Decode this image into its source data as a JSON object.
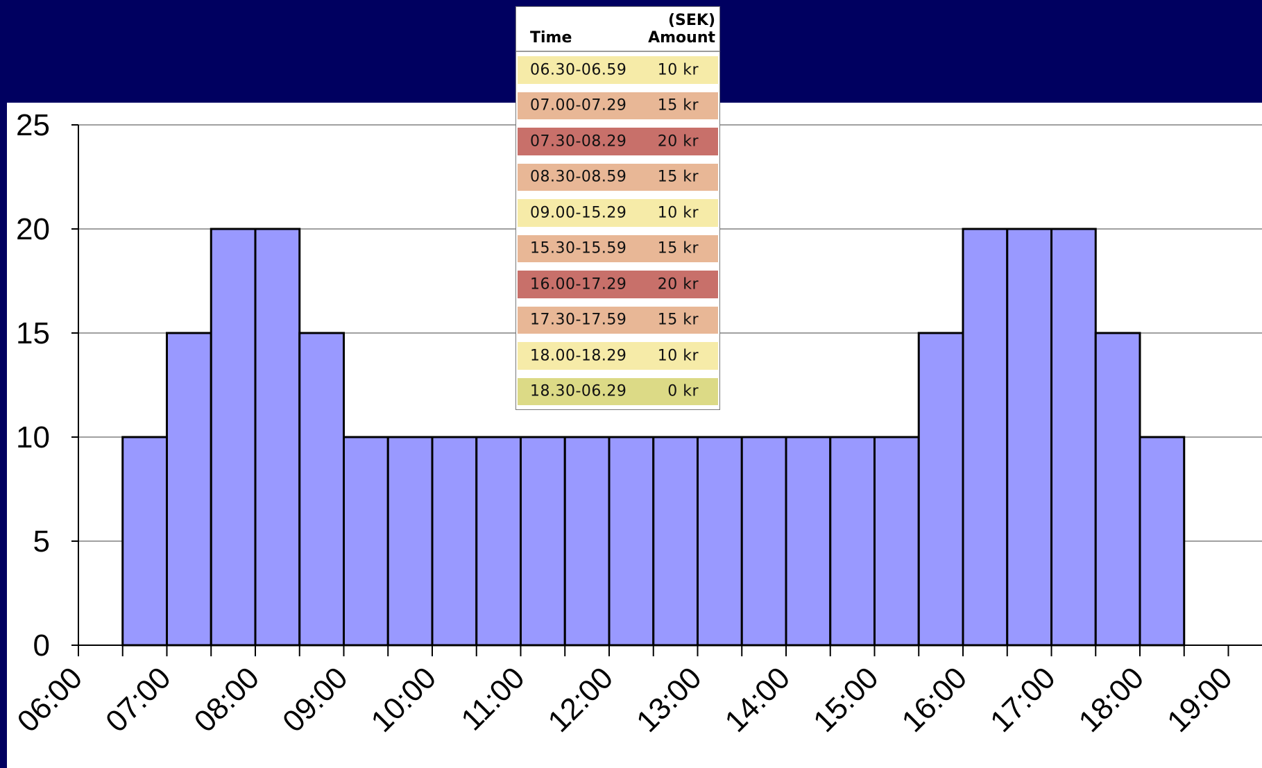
{
  "colors": {
    "slide_background": "#000060",
    "plot_background": "#FFFFFF",
    "bar_fill": "#9999FF",
    "bar_edge": "#000000",
    "gridline": "#808080",
    "rate_10": "#F6EBA8",
    "rate_15": "#E8B796",
    "rate_20": "#C8706A",
    "rate_0": "#DCDA86"
  },
  "chart_data": {
    "type": "bar",
    "title": "",
    "xlabel": "",
    "ylabel": "",
    "ylim": [
      0,
      25
    ],
    "yticks": [
      "0",
      "5",
      "10",
      "15",
      "20",
      "25"
    ],
    "xlim": [
      "06:00",
      "19:00"
    ],
    "xticks": [
      "06:00",
      "07:00",
      "08:00",
      "09:00",
      "10:00",
      "11:00",
      "12:00",
      "13:00",
      "14:00",
      "15:00",
      "16:00",
      "17:00",
      "18:00",
      "19:00"
    ],
    "grid": "horizontal",
    "legend": "none",
    "categories": [
      "06:30",
      "07:00",
      "07:30",
      "08:00",
      "08:30",
      "09:00",
      "09:30",
      "10:00",
      "10:30",
      "11:00",
      "11:30",
      "12:00",
      "12:30",
      "13:00",
      "13:30",
      "14:00",
      "14:30",
      "15:00",
      "15:30",
      "16:00",
      "16:30",
      "17:00",
      "17:30",
      "18:00"
    ],
    "values": [
      10,
      15,
      20,
      20,
      15,
      10,
      10,
      10,
      10,
      10,
      10,
      10,
      10,
      10,
      10,
      10,
      10,
      10,
      15,
      20,
      20,
      20,
      15,
      10
    ]
  },
  "rate_table": {
    "header_time": "Time",
    "header_unit": "(SEK)",
    "header_amount": "Amount",
    "rows": [
      {
        "time": "06.30-06.59",
        "amount": "10 kr",
        "level": "rate_10"
      },
      {
        "time": "07.00-07.29",
        "amount": "15 kr",
        "level": "rate_15"
      },
      {
        "time": "07.30-08.29",
        "amount": "20 kr",
        "level": "rate_20"
      },
      {
        "time": "08.30-08.59",
        "amount": "15 kr",
        "level": "rate_15"
      },
      {
        "time": "09.00-15.29",
        "amount": "10 kr",
        "level": "rate_10"
      },
      {
        "time": "15.30-15.59",
        "amount": "15 kr",
        "level": "rate_15"
      },
      {
        "time": "16.00-17.29",
        "amount": "20 kr",
        "level": "rate_20"
      },
      {
        "time": "17.30-17.59",
        "amount": "15 kr",
        "level": "rate_15"
      },
      {
        "time": "18.00-18.29",
        "amount": "10 kr",
        "level": "rate_10"
      },
      {
        "time": "18.30-06.29",
        "amount": "0 kr",
        "level": "rate_0"
      }
    ]
  }
}
